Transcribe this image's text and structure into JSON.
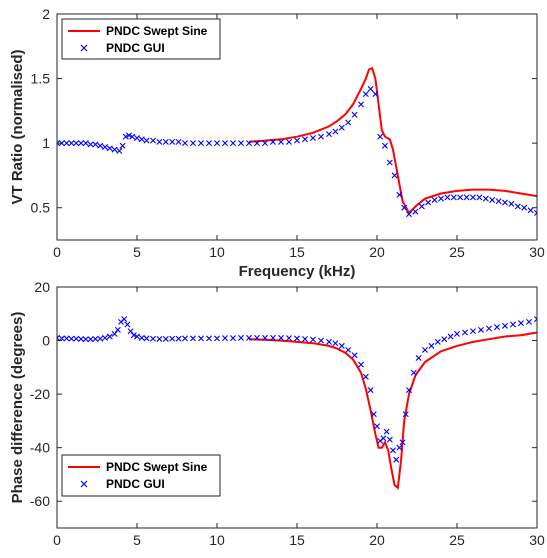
{
  "chart_data": [
    {
      "type": "line",
      "xlabel": "Frequency (kHz)",
      "ylabel": "VT Ratio (normalised)",
      "xlim": [
        0,
        30
      ],
      "ylim": [
        0.25,
        2
      ],
      "xticks": [
        0,
        5,
        10,
        15,
        20,
        25,
        30
      ],
      "yticks": [
        0.5,
        1,
        1.5,
        2
      ],
      "ytick_labels": [
        "0.5",
        "1",
        "1.5",
        "2"
      ],
      "grid": false,
      "legend_position": "top-left",
      "series": [
        {
          "name": "PNDC Swept Sine",
          "style": "line",
          "color": "#ff0000",
          "x": [
            12,
            13,
            14,
            15,
            16,
            17,
            17.5,
            18,
            18.5,
            19,
            19.3,
            19.5,
            19.7,
            19.9,
            20.1,
            20.3,
            20.5,
            20.8,
            21.0,
            21.3,
            21.6,
            22.0,
            22.5,
            23,
            24,
            25,
            26,
            27,
            28,
            29,
            30
          ],
          "y": [
            1.01,
            1.02,
            1.03,
            1.05,
            1.08,
            1.13,
            1.17,
            1.22,
            1.3,
            1.42,
            1.5,
            1.57,
            1.58,
            1.5,
            1.3,
            1.1,
            1.05,
            1.03,
            0.95,
            0.75,
            0.55,
            0.46,
            0.52,
            0.57,
            0.61,
            0.63,
            0.64,
            0.64,
            0.63,
            0.61,
            0.59
          ]
        },
        {
          "name": "PNDC GUI",
          "style": "marker",
          "color": "#0000ff",
          "x": [
            0,
            0.3,
            0.6,
            0.9,
            1.2,
            1.5,
            1.8,
            2.1,
            2.4,
            2.7,
            3.0,
            3.3,
            3.6,
            3.9,
            4.1,
            4.3,
            4.5,
            4.7,
            5.0,
            5.3,
            5.6,
            6.0,
            6.4,
            6.8,
            7.2,
            7.6,
            8.0,
            8.5,
            9.0,
            9.5,
            10.0,
            10.5,
            11.0,
            11.5,
            12.0,
            12.5,
            13.0,
            13.5,
            14.0,
            14.5,
            15.0,
            15.5,
            16.0,
            16.5,
            17.0,
            17.4,
            17.8,
            18.2,
            18.6,
            19.0,
            19.3,
            19.6,
            19.9,
            20.2,
            20.5,
            20.8,
            21.1,
            21.4,
            21.7,
            22.0,
            22.4,
            22.8,
            23.2,
            23.6,
            24.0,
            24.4,
            24.8,
            25.2,
            25.6,
            26.0,
            26.4,
            26.8,
            27.2,
            27.6,
            28.0,
            28.4,
            28.8,
            29.2,
            29.6,
            30.0
          ],
          "y": [
            1.0,
            1.0,
            1.0,
            1.0,
            1.0,
            1.0,
            1.0,
            0.99,
            0.99,
            0.98,
            0.97,
            0.96,
            0.95,
            0.94,
            0.98,
            1.05,
            1.06,
            1.05,
            1.04,
            1.03,
            1.02,
            1.02,
            1.01,
            1.01,
            1.01,
            1.01,
            1.0,
            1.0,
            1.0,
            1.0,
            1.0,
            1.0,
            1.0,
            1.0,
            1.0,
            1.0,
            1.0,
            1.01,
            1.01,
            1.01,
            1.02,
            1.03,
            1.04,
            1.05,
            1.07,
            1.09,
            1.12,
            1.16,
            1.22,
            1.3,
            1.38,
            1.42,
            1.38,
            1.05,
            0.98,
            0.85,
            0.75,
            0.6,
            0.5,
            0.45,
            0.47,
            0.51,
            0.54,
            0.56,
            0.57,
            0.58,
            0.58,
            0.58,
            0.58,
            0.58,
            0.58,
            0.57,
            0.56,
            0.55,
            0.54,
            0.53,
            0.51,
            0.5,
            0.48,
            0.46
          ]
        }
      ]
    },
    {
      "type": "line",
      "xlabel": "Frequency (kHz)",
      "ylabel": "Phase difference (degrees)",
      "xlim": [
        0,
        30
      ],
      "ylim": [
        -70,
        20
      ],
      "xticks": [
        0,
        5,
        10,
        15,
        20,
        25,
        30
      ],
      "yticks": [
        -60,
        -40,
        -20,
        0,
        20
      ],
      "grid": false,
      "legend_position": "bottom-left",
      "series": [
        {
          "name": "PNDC Swept Sine",
          "style": "line",
          "color": "#ff0000",
          "x": [
            12,
            13,
            14,
            15,
            16,
            17,
            17.5,
            18,
            18.5,
            19,
            19.3,
            19.6,
            19.9,
            20.1,
            20.3,
            20.5,
            20.7,
            20.9,
            21.1,
            21.3,
            21.5,
            21.7,
            22.0,
            22.4,
            23,
            24,
            25,
            26,
            27,
            28,
            29,
            30
          ],
          "y": [
            0.5,
            0.3,
            0.0,
            -0.5,
            -1.0,
            -2.0,
            -3.0,
            -4.5,
            -7.0,
            -12,
            -18,
            -26,
            -35,
            -40,
            -40,
            -38,
            -41,
            -48,
            -54,
            -55,
            -45,
            -30,
            -20,
            -13,
            -8,
            -4,
            -2,
            -0.5,
            0.5,
            1.5,
            2.0,
            3.0
          ]
        },
        {
          "name": "PNDC GUI",
          "style": "marker",
          "color": "#0000ff",
          "x": [
            0,
            0.3,
            0.6,
            0.9,
            1.2,
            1.5,
            1.8,
            2.1,
            2.4,
            2.7,
            3.0,
            3.3,
            3.6,
            3.8,
            4.0,
            4.2,
            4.4,
            4.6,
            4.8,
            5.0,
            5.3,
            5.6,
            6.0,
            6.4,
            6.8,
            7.2,
            7.6,
            8.0,
            8.5,
            9.0,
            9.5,
            10.0,
            10.5,
            11.0,
            11.5,
            12.0,
            12.5,
            13.0,
            13.5,
            14.0,
            14.5,
            15.0,
            15.5,
            16.0,
            16.5,
            17.0,
            17.4,
            17.8,
            18.2,
            18.6,
            19.0,
            19.3,
            19.6,
            19.8,
            20.0,
            20.2,
            20.4,
            20.6,
            20.8,
            21.0,
            21.2,
            21.4,
            21.6,
            21.8,
            22.0,
            22.3,
            22.6,
            23.0,
            23.4,
            23.8,
            24.2,
            24.6,
            25.0,
            25.5,
            26.0,
            26.5,
            27.0,
            27.5,
            28.0,
            28.5,
            29.0,
            29.5,
            30.0
          ],
          "y": [
            1.0,
            0.8,
            0.8,
            0.7,
            0.7,
            0.6,
            0.5,
            0.5,
            0.6,
            0.7,
            1.0,
            1.5,
            2.5,
            4.0,
            7.0,
            8.0,
            6.0,
            3.5,
            2.0,
            1.5,
            1.0,
            0.8,
            0.7,
            0.6,
            0.6,
            0.7,
            0.7,
            0.8,
            0.8,
            0.8,
            0.8,
            0.8,
            0.9,
            0.9,
            1.0,
            1.0,
            1.0,
            1.0,
            1.0,
            1.0,
            0.9,
            0.8,
            0.6,
            0.4,
            0.0,
            -0.5,
            -1.0,
            -2.0,
            -3.5,
            -5.5,
            -9.0,
            -13.5,
            -18.5,
            -27.5,
            -32.0,
            -37.5,
            -36.5,
            -34.0,
            -37.0,
            -41.0,
            -44.5,
            -40.0,
            -38.0,
            -27.5,
            -18.5,
            -12.0,
            -6.5,
            -3.5,
            -2.0,
            -0.5,
            0.5,
            1.5,
            2.5,
            3.0,
            3.5,
            4.0,
            4.5,
            5.0,
            5.5,
            6.0,
            6.5,
            7.0,
            8.0
          ]
        }
      ]
    }
  ]
}
